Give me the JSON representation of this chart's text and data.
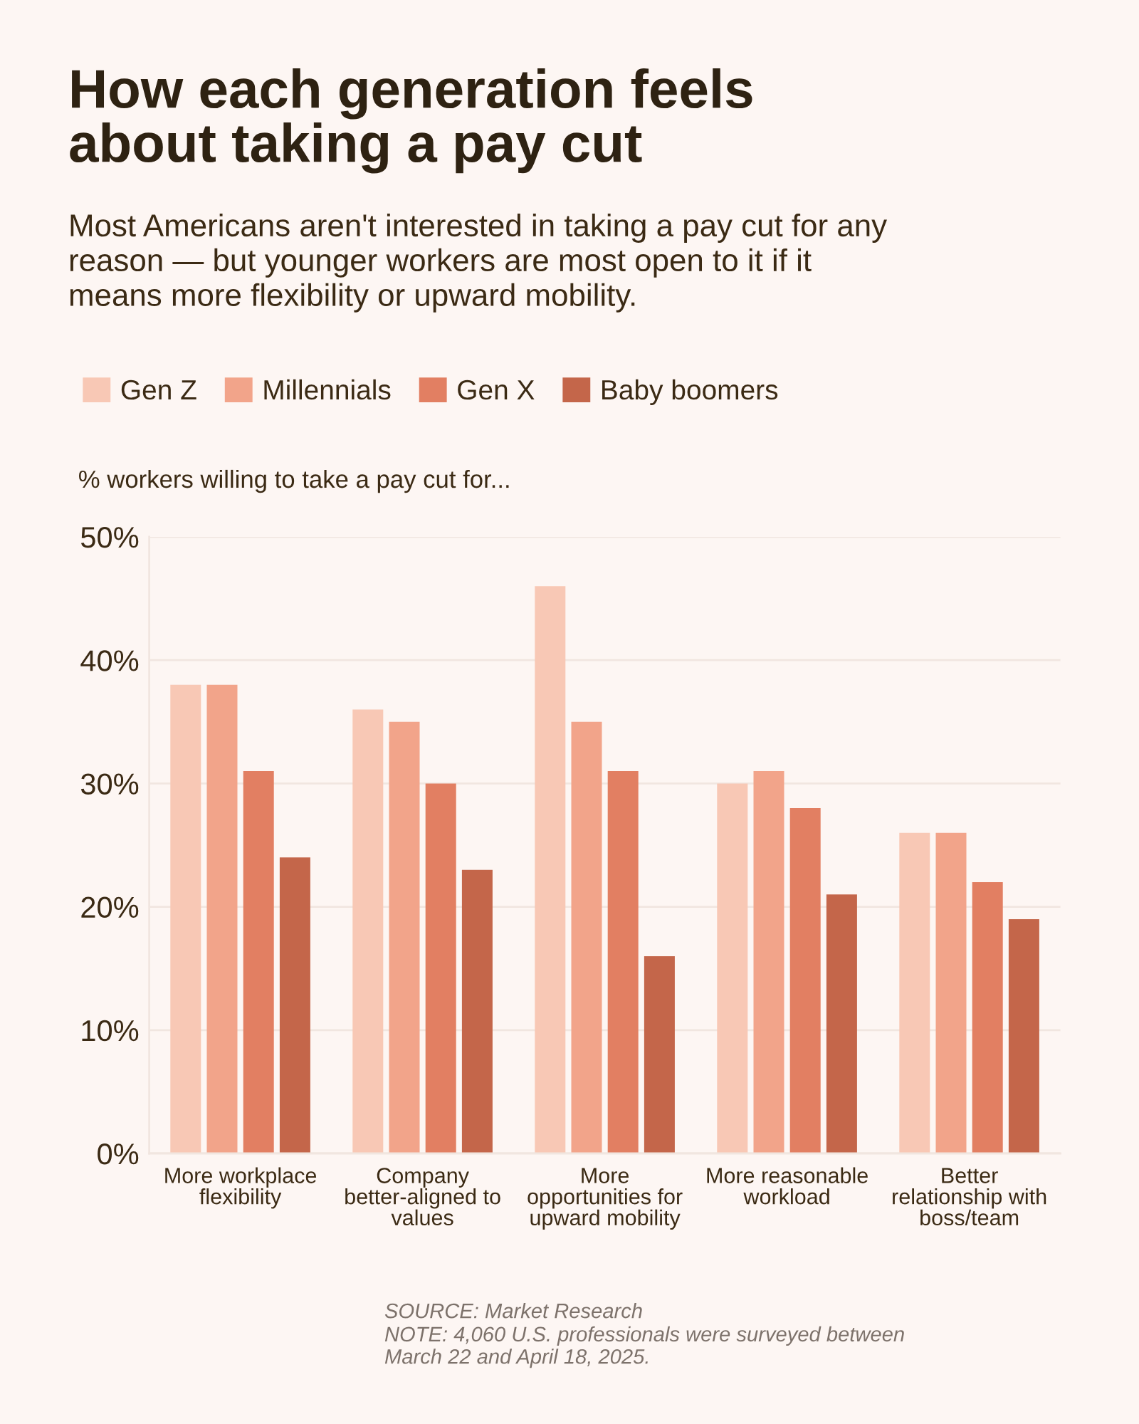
{
  "chart_data": {
    "type": "bar",
    "title": "How each generation feels\nabout taking a pay cut",
    "subtitle": "Most Americans aren't interested in taking a pay cut for any\nreason — but younger workers are most open to it if it\nmeans more flexibility or upward mobility.",
    "ylabel": "% workers willing to take a pay cut for...",
    "categories": [
      "More workplace\nflexibility",
      "Company\nbetter-aligned to\nvalues",
      "More\nopportunities for\nupward mobility",
      "More reasonable\nworkload",
      "Better\nrelationship with\nboss/team"
    ],
    "series": [
      {
        "name": "Gen Z",
        "color": "#f8c8b5",
        "values": [
          38,
          36,
          46,
          30,
          26
        ]
      },
      {
        "name": "Millennials",
        "color": "#f2a48a",
        "values": [
          38,
          35,
          35,
          31,
          26
        ]
      },
      {
        "name": "Gen X",
        "color": "#e27f62",
        "values": [
          31,
          30,
          31,
          28,
          22
        ]
      },
      {
        "name": "Baby boomers",
        "color": "#c4664a",
        "values": [
          24,
          23,
          16,
          21,
          19
        ]
      }
    ],
    "ylim": [
      0,
      50
    ],
    "yticks": [
      {
        "value": 0,
        "label": "0%"
      },
      {
        "value": 10,
        "label": "10%"
      },
      {
        "value": 20,
        "label": "20%"
      },
      {
        "value": 30,
        "label": "30%"
      },
      {
        "value": 40,
        "label": "40%"
      },
      {
        "value": 50,
        "label": "50%"
      }
    ],
    "grid": "y",
    "legend": "top left",
    "annotations": [
      "SOURCE: Market Research",
      "NOTE: 4,060 U.S. professionals were surveyed between\nMarch 22 and April 18, 2025."
    ]
  }
}
